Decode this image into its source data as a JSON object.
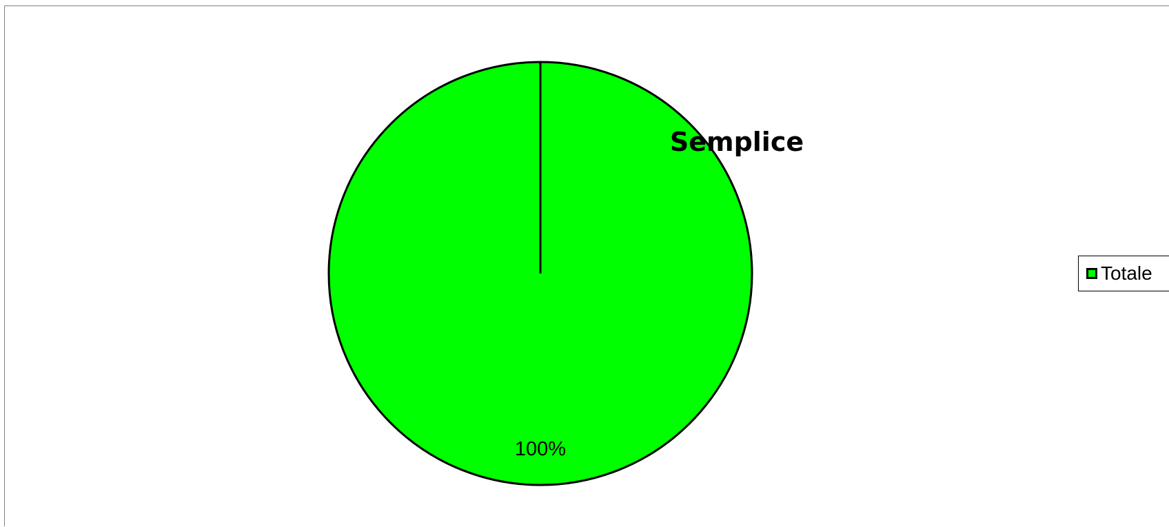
{
  "chart_data": {
    "type": "pie",
    "title": "Semplice",
    "slices": [
      {
        "label": "Totale",
        "value": 100,
        "percent_label": "100%",
        "color": "#00ff00"
      }
    ],
    "legend": {
      "position": "right",
      "entries": [
        "Totale"
      ]
    },
    "slice_border_color": "#000000"
  }
}
